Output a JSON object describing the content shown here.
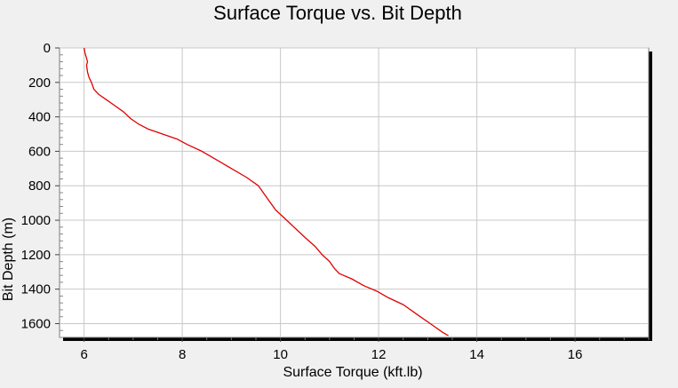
{
  "chart_data": {
    "type": "line",
    "title": "Surface Torque vs. Bit Depth",
    "xlabel": "Surface Torque (kft.lb)",
    "ylabel": "Bit Depth (m)",
    "xlim": [
      5.5,
      17.5
    ],
    "ylim": [
      0,
      1680
    ],
    "y_inverted": true,
    "grid": true,
    "x_ticks": [
      6,
      8,
      10,
      12,
      14,
      16
    ],
    "x_tick_labels": [
      "6",
      "8",
      "10",
      "12",
      "14",
      "16"
    ],
    "y_ticks": [
      0,
      200,
      400,
      600,
      800,
      1000,
      1200,
      1400,
      1600
    ],
    "y_tick_labels": [
      "0",
      "200",
      "400",
      "600",
      "800",
      "1000",
      "1200",
      "1400",
      "1600"
    ],
    "series": [
      {
        "name": "Surface Torque",
        "color": "#e00000",
        "x": [
          6.0,
          6.02,
          6.05,
          6.07,
          6.05,
          6.07,
          6.1,
          6.15,
          6.2,
          6.3,
          6.45,
          6.6,
          6.8,
          6.95,
          7.1,
          7.3,
          7.6,
          7.9,
          8.1,
          8.4,
          8.7,
          9.0,
          9.3,
          9.55,
          9.7,
          9.9,
          10.2,
          10.5,
          10.7,
          10.85,
          11.0,
          11.1,
          11.2,
          11.45,
          11.7,
          11.95,
          12.2,
          12.5,
          12.8,
          13.1,
          13.3,
          13.42
        ],
        "y": [
          0,
          30,
          60,
          80,
          100,
          140,
          170,
          200,
          240,
          270,
          300,
          330,
          370,
          410,
          440,
          470,
          500,
          530,
          560,
          600,
          650,
          700,
          750,
          800,
          860,
          940,
          1020,
          1100,
          1150,
          1200,
          1240,
          1280,
          1310,
          1340,
          1380,
          1410,
          1450,
          1490,
          1550,
          1610,
          1650,
          1670
        ]
      }
    ]
  }
}
